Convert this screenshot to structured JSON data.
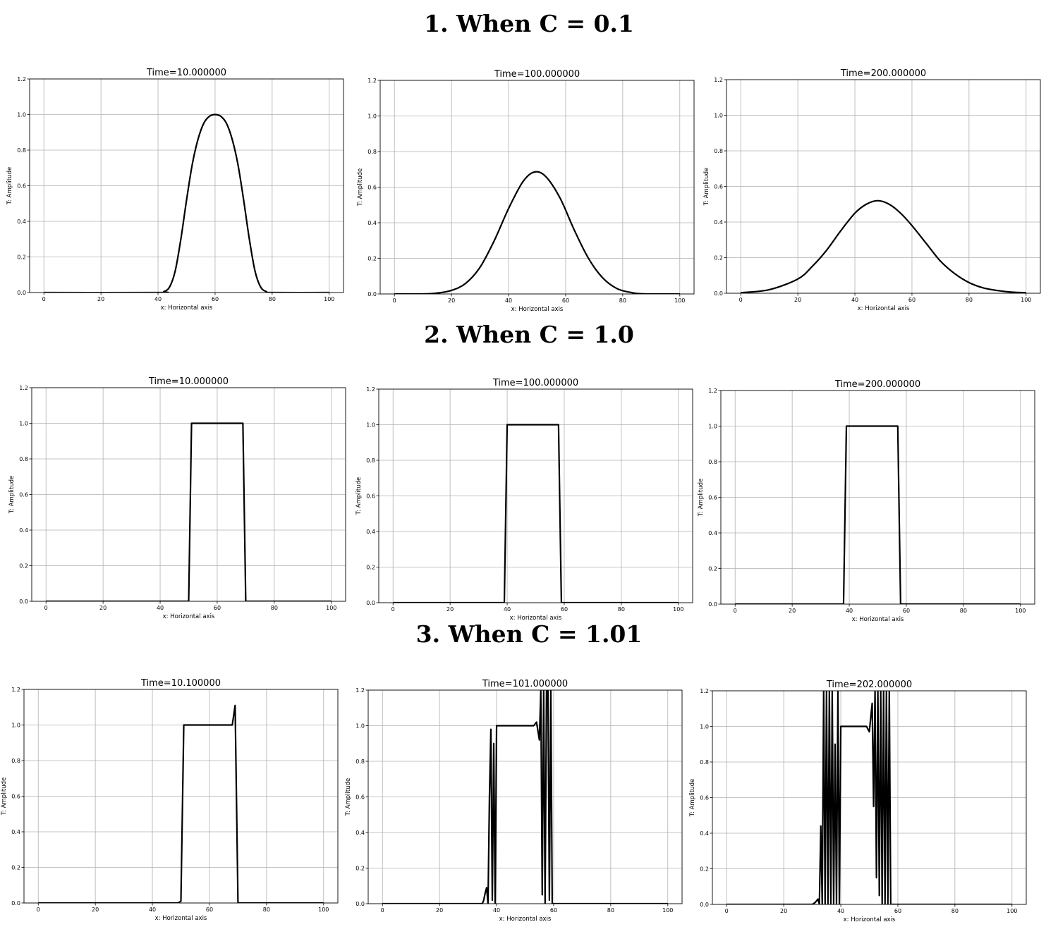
{
  "sections": [
    {
      "heading": "1. When C = 0.1"
    },
    {
      "heading": "2. When C = 1.0"
    },
    {
      "heading": "3. When C = 1.01"
    }
  ],
  "chart_data": [
    {
      "type": "line",
      "shape": "smooth",
      "title": "Time=10.000000",
      "xlabel": "x: Horizontal axis",
      "ylabel": "T: Amplitude",
      "xlim": [
        -5,
        105
      ],
      "ylim": [
        0,
        1.2
      ],
      "xticks": [
        0,
        20,
        40,
        60,
        80,
        100
      ],
      "yticks": [
        0.0,
        0.2,
        0.4,
        0.6,
        0.8,
        1.0,
        1.2
      ],
      "grid": true,
      "series": [
        {
          "color": "#000000",
          "x": [
            0,
            40,
            42,
            44,
            46,
            48,
            50,
            52,
            54,
            56,
            58,
            60,
            62,
            64,
            66,
            68,
            70,
            72,
            74,
            76,
            78,
            80,
            100
          ],
          "y": [
            0,
            0,
            0.005,
            0.03,
            0.12,
            0.3,
            0.52,
            0.72,
            0.86,
            0.95,
            0.99,
            1.0,
            0.99,
            0.95,
            0.86,
            0.72,
            0.52,
            0.3,
            0.12,
            0.03,
            0.005,
            0,
            0
          ]
        }
      ]
    },
    {
      "type": "line",
      "shape": "smooth",
      "title": "Time=100.000000",
      "xlabel": "x: Horizontal axis",
      "ylabel": "T: Amplitude",
      "xlim": [
        -5,
        105
      ],
      "ylim": [
        0,
        1.2
      ],
      "xticks": [
        0,
        20,
        40,
        60,
        80,
        100
      ],
      "yticks": [
        0.0,
        0.2,
        0.4,
        0.6,
        0.8,
        1.0,
        1.2
      ],
      "grid": true,
      "series": [
        {
          "color": "#000000",
          "x": [
            0,
            10,
            15,
            20,
            25,
            30,
            35,
            40,
            45,
            49,
            53,
            58,
            63,
            68,
            73,
            78,
            83,
            88,
            100
          ],
          "y": [
            0,
            0,
            0.005,
            0.02,
            0.06,
            0.15,
            0.3,
            0.48,
            0.63,
            0.685,
            0.66,
            0.54,
            0.36,
            0.2,
            0.09,
            0.03,
            0.008,
            0,
            0
          ]
        }
      ]
    },
    {
      "type": "line",
      "shape": "smooth",
      "title": "Time=200.000000",
      "xlabel": "x: Horizontal axis",
      "ylabel": "T: Amplitude",
      "xlim": [
        -5,
        105
      ],
      "ylim": [
        0,
        1.2
      ],
      "xticks": [
        0,
        20,
        40,
        60,
        80,
        100
      ],
      "yticks": [
        0.0,
        0.2,
        0.4,
        0.6,
        0.8,
        1.0,
        1.2
      ],
      "grid": true,
      "series": [
        {
          "color": "#000000",
          "x": [
            0,
            10,
            20,
            25,
            30,
            35,
            40,
            44,
            48,
            52,
            56,
            60,
            65,
            70,
            75,
            80,
            85,
            90,
            95,
            100
          ],
          "y": [
            0.003,
            0.02,
            0.08,
            0.15,
            0.24,
            0.35,
            0.45,
            0.5,
            0.52,
            0.5,
            0.45,
            0.38,
            0.28,
            0.18,
            0.11,
            0.06,
            0.03,
            0.015,
            0.006,
            0.003
          ]
        }
      ]
    },
    {
      "type": "line",
      "shape": "linear",
      "title": "Time=10.000000",
      "xlabel": "x: Horizontal axis",
      "ylabel": "T: Amplitude",
      "xlim": [
        -5,
        105
      ],
      "ylim": [
        0,
        1.2
      ],
      "xticks": [
        0,
        20,
        40,
        60,
        80,
        100
      ],
      "yticks": [
        0.0,
        0.2,
        0.4,
        0.6,
        0.8,
        1.0,
        1.2
      ],
      "grid": true,
      "series": [
        {
          "color": "#000000",
          "x": [
            0,
            50,
            51,
            69,
            70,
            100
          ],
          "y": [
            0,
            0,
            1,
            1,
            0,
            0
          ]
        }
      ]
    },
    {
      "type": "line",
      "shape": "linear",
      "title": "Time=100.000000",
      "xlabel": "x: Horizontal axis",
      "ylabel": "T: Amplitude",
      "xlim": [
        -5,
        105
      ],
      "ylim": [
        0,
        1.2
      ],
      "xticks": [
        0,
        20,
        40,
        60,
        80,
        100
      ],
      "yticks": [
        0.0,
        0.2,
        0.4,
        0.6,
        0.8,
        1.0,
        1.2
      ],
      "grid": true,
      "series": [
        {
          "color": "#000000",
          "x": [
            0,
            39,
            40,
            58,
            59,
            100
          ],
          "y": [
            0,
            0,
            1,
            1,
            0,
            0
          ]
        }
      ]
    },
    {
      "type": "line",
      "shape": "linear",
      "title": "Time=200.000000",
      "xlabel": "x: Horizontal axis",
      "ylabel": "T: Amplitude",
      "xlim": [
        -5,
        105
      ],
      "ylim": [
        0,
        1.2
      ],
      "xticks": [
        0,
        20,
        40,
        60,
        80,
        100
      ],
      "yticks": [
        0.0,
        0.2,
        0.4,
        0.6,
        0.8,
        1.0,
        1.2
      ],
      "grid": true,
      "series": [
        {
          "color": "#000000",
          "x": [
            0,
            38,
            39,
            57,
            58,
            100
          ],
          "y": [
            0,
            0,
            1,
            1,
            0,
            0
          ]
        }
      ]
    },
    {
      "type": "line",
      "shape": "linear",
      "title": "Time=10.100000",
      "xlabel": "x: Horizontal axis",
      "ylabel": "T: Amplitude",
      "xlim": [
        -5,
        105
      ],
      "ylim": [
        0,
        1.2
      ],
      "xticks": [
        0,
        20,
        40,
        60,
        80,
        100
      ],
      "yticks": [
        0.0,
        0.2,
        0.4,
        0.6,
        0.8,
        1.0,
        1.2
      ],
      "grid": true,
      "series": [
        {
          "color": "#000000",
          "x": [
            0,
            49,
            50,
            51,
            68,
            69,
            70,
            100
          ],
          "y": [
            0,
            0,
            0.01,
            1,
            1,
            1.11,
            0,
            0
          ]
        }
      ]
    },
    {
      "type": "line",
      "shape": "linear",
      "title": "Time=101.000000",
      "xlabel": "x: Horizontal axis",
      "ylabel": "T: Amplitude",
      "xlim": [
        -5,
        105
      ],
      "ylim": [
        0,
        1.2
      ],
      "xticks": [
        0,
        20,
        40,
        60,
        80,
        100
      ],
      "yticks": [
        0.0,
        0.2,
        0.4,
        0.6,
        0.8,
        1.0,
        1.2
      ],
      "grid": true,
      "series": [
        {
          "color": "#000000",
          "x": [
            0,
            35,
            35.5,
            36,
            36.5,
            37,
            37.5,
            38,
            38.5,
            39,
            39.5,
            40,
            47,
            53,
            54,
            55,
            55.5,
            56,
            56.5,
            57,
            57.5,
            58,
            58.5,
            59,
            59.5,
            60,
            100
          ],
          "y": [
            0,
            0,
            0.02,
            0.06,
            0.09,
            0.0,
            0.6,
            0.98,
            0.02,
            0.9,
            0.0,
            1.0,
            1.0,
            1.0,
            1.02,
            0.92,
            1.2,
            0.05,
            1.2,
            0.0,
            1.2,
            1.2,
            0.02,
            1.2,
            0.0,
            0,
            0
          ]
        }
      ]
    },
    {
      "type": "line",
      "shape": "linear",
      "title": "Time=202.000000",
      "xlabel": "x: Horizontal axis",
      "ylabel": "T: Amplitude",
      "xlim": [
        -5,
        105
      ],
      "ylim": [
        0,
        1.2
      ],
      "xticks": [
        0,
        20,
        40,
        60,
        80,
        100
      ],
      "yticks": [
        0.0,
        0.2,
        0.4,
        0.6,
        0.8,
        1.0,
        1.2
      ],
      "grid": true,
      "series": [
        {
          "color": "#000000",
          "x": [
            0,
            30,
            31,
            32,
            32.5,
            33,
            33.5,
            34,
            34.5,
            35,
            35.5,
            36,
            36.5,
            37,
            37.5,
            38,
            38.5,
            39,
            39.5,
            40,
            44,
            49,
            50,
            50.5,
            51,
            51.5,
            52,
            52.5,
            53,
            53.5,
            54,
            54.5,
            55,
            55.5,
            56,
            56.5,
            57,
            57.5,
            58,
            100
          ],
          "y": [
            0,
            0,
            0.01,
            0.03,
            0.0,
            0.44,
            0.0,
            1.2,
            0.0,
            1.2,
            0.0,
            1.2,
            0.0,
            1.2,
            0.0,
            0.9,
            0.0,
            1.2,
            0.0,
            1.0,
            1.0,
            1.0,
            0.97,
            1.05,
            1.13,
            0.55,
            1.2,
            0.15,
            1.2,
            0.05,
            1.2,
            0.0,
            1.2,
            0.0,
            1.2,
            0.0,
            1.2,
            0.0,
            0,
            0
          ]
        }
      ]
    }
  ]
}
